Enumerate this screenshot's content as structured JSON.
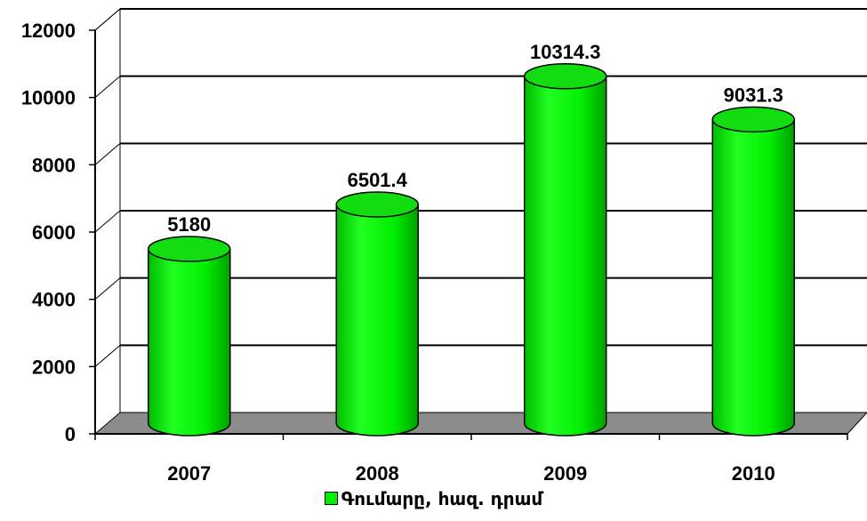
{
  "chart_data": {
    "type": "bar",
    "categories": [
      "2007",
      "2008",
      "2009",
      "2010"
    ],
    "series": [
      {
        "name": "Գումարը, հազ. դրամ",
        "values": [
          5180,
          6501.4,
          10314.3,
          9031.3
        ]
      }
    ],
    "data_labels": [
      "5180",
      "6501.4",
      "10314.3",
      "9031.3"
    ],
    "ylim": [
      0,
      12000
    ],
    "y_ticks": [
      0,
      2000,
      4000,
      6000,
      8000,
      10000,
      12000
    ],
    "y_tick_labels": [
      "0",
      "2000",
      "4000",
      "6000",
      "8000",
      "10000",
      "12000"
    ],
    "legend_position": "bottom",
    "grid": true,
    "bar_shape": "3d-cylinder",
    "colors": {
      "bar": "#00ee00",
      "bar_dark": "#009900",
      "floor": "#8c8c8c",
      "grid": "#000000"
    }
  }
}
